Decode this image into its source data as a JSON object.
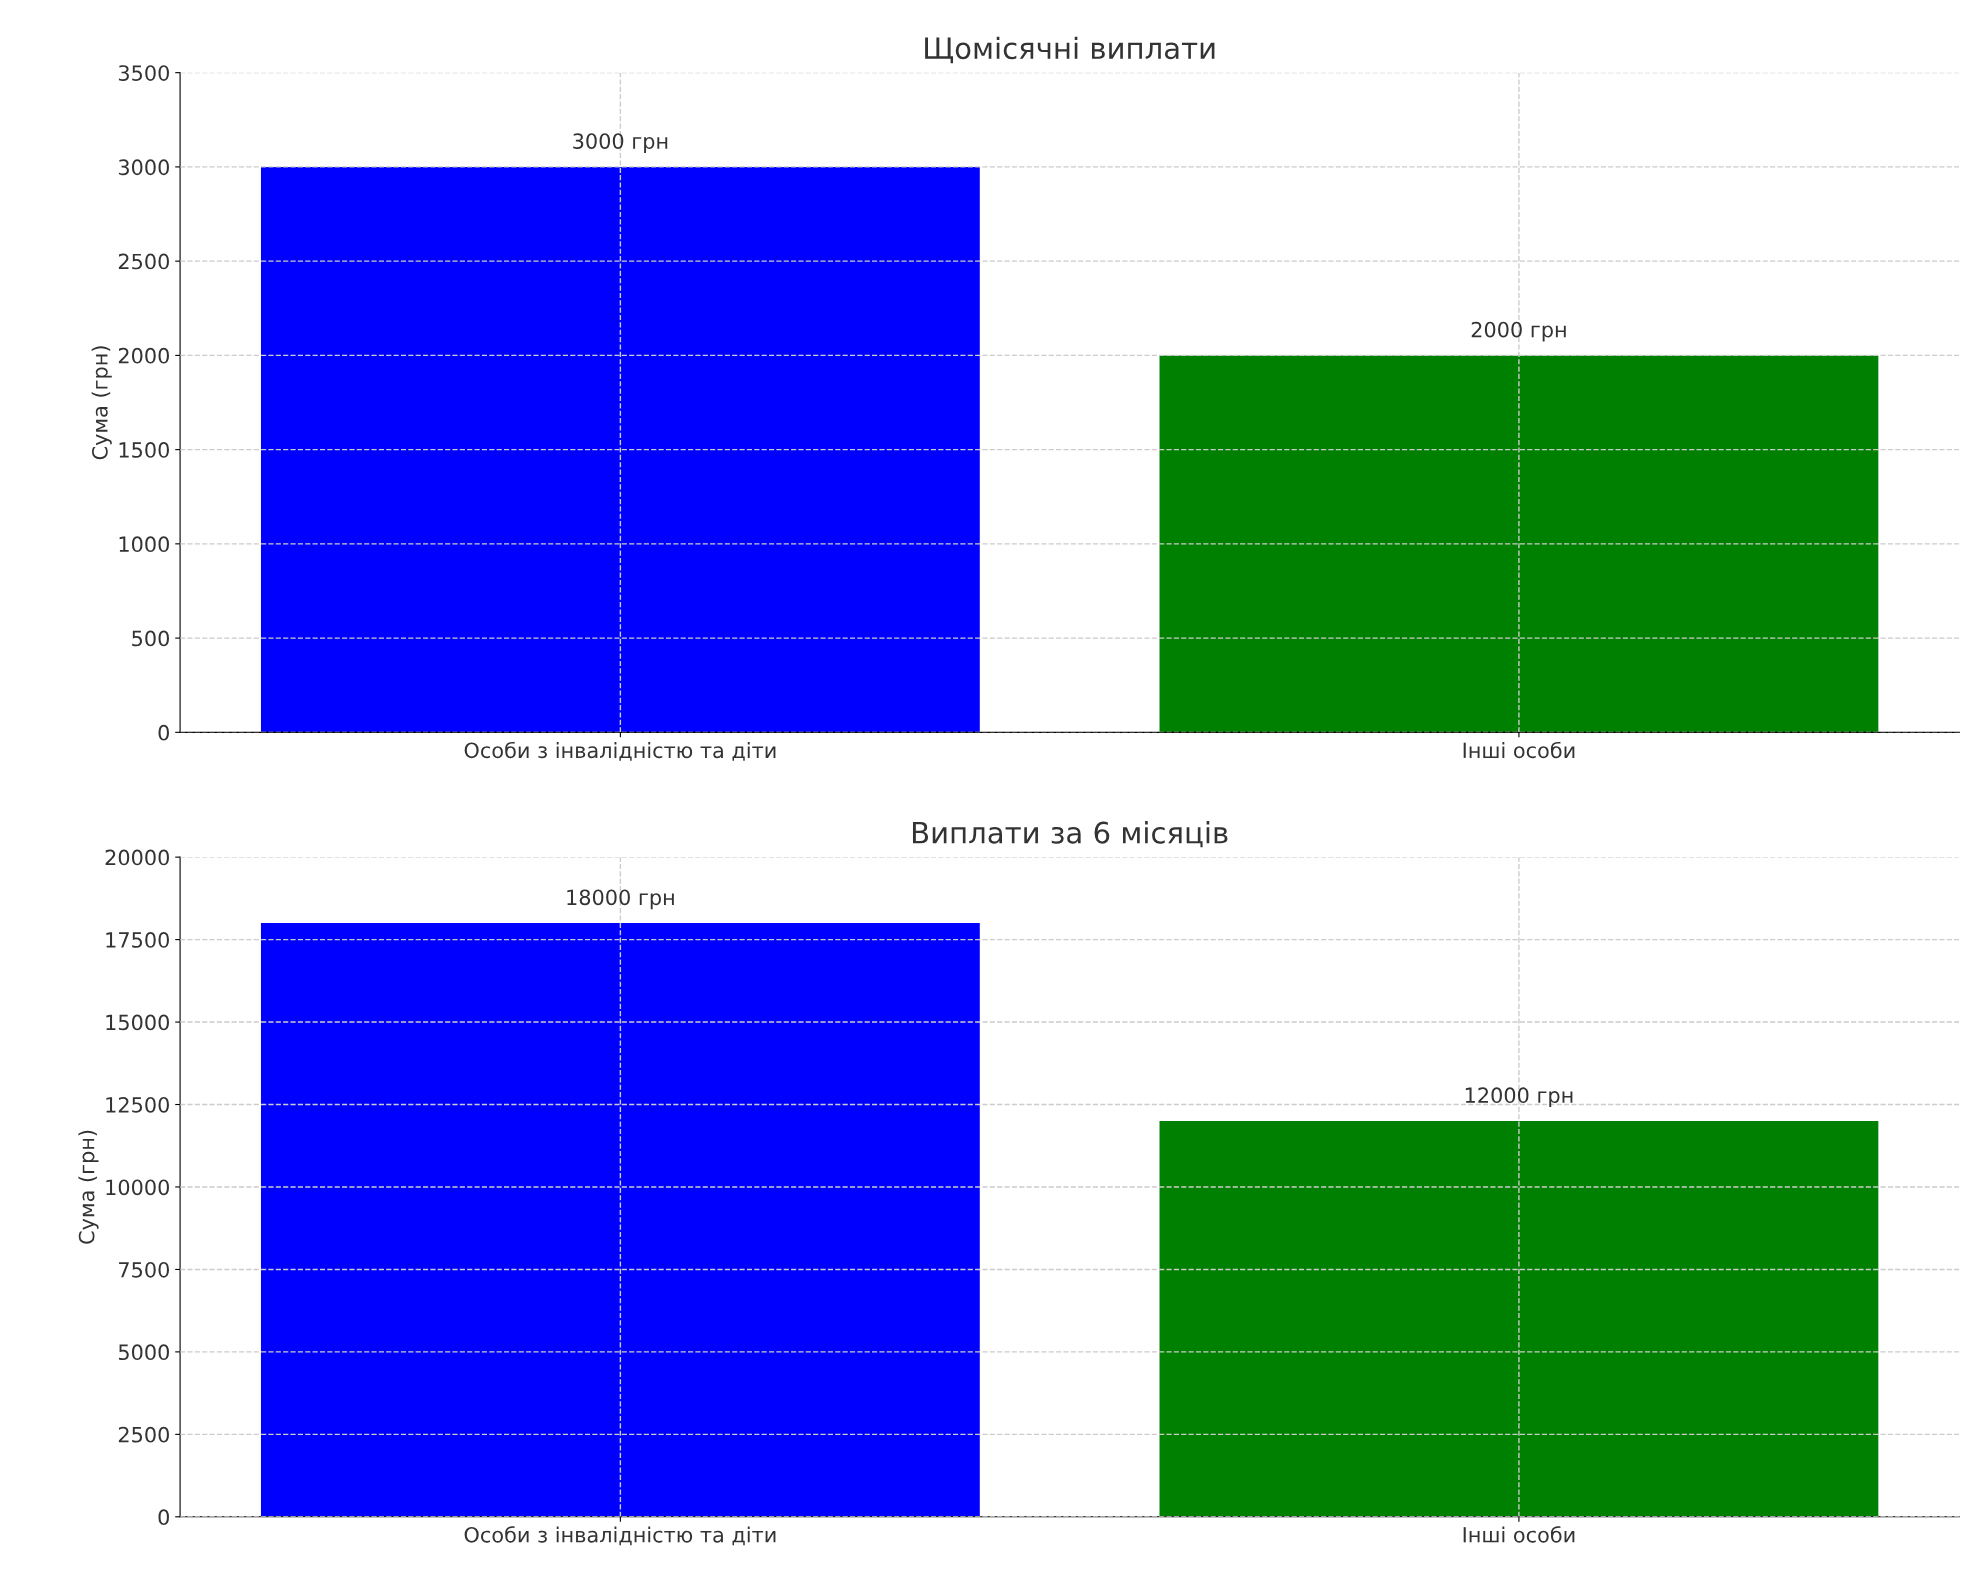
{
  "chart_data": [
    {
      "type": "bar",
      "title": "Щомісячні виплати",
      "ylabel": "Сума (грн)",
      "categories": [
        "Особи з інвалідністю та діти",
        "Інші особи"
      ],
      "values": [
        3000,
        2000
      ],
      "colors": [
        "#0000ff",
        "#008000"
      ],
      "ylim": [
        0,
        3500
      ],
      "yticks": [
        0,
        500,
        1000,
        1500,
        2000,
        2500,
        3000,
        3500
      ],
      "grid": true,
      "value_labels": [
        "3000 грн",
        "2000 грн"
      ]
    },
    {
      "type": "bar",
      "title": "Виплати за 6 місяців",
      "ylabel": "Сума (грн)",
      "categories": [
        "Особи з інвалідністю та діти",
        "Інші особи"
      ],
      "values": [
        18000,
        12000
      ],
      "colors": [
        "#0000ff",
        "#008000"
      ],
      "ylim": [
        0,
        20000
      ],
      "yticks": [
        0,
        2500,
        5000,
        7500,
        10000,
        12500,
        15000,
        17500,
        20000
      ],
      "grid": true,
      "value_labels": [
        "18000 грн",
        "12000 грн"
      ]
    }
  ]
}
